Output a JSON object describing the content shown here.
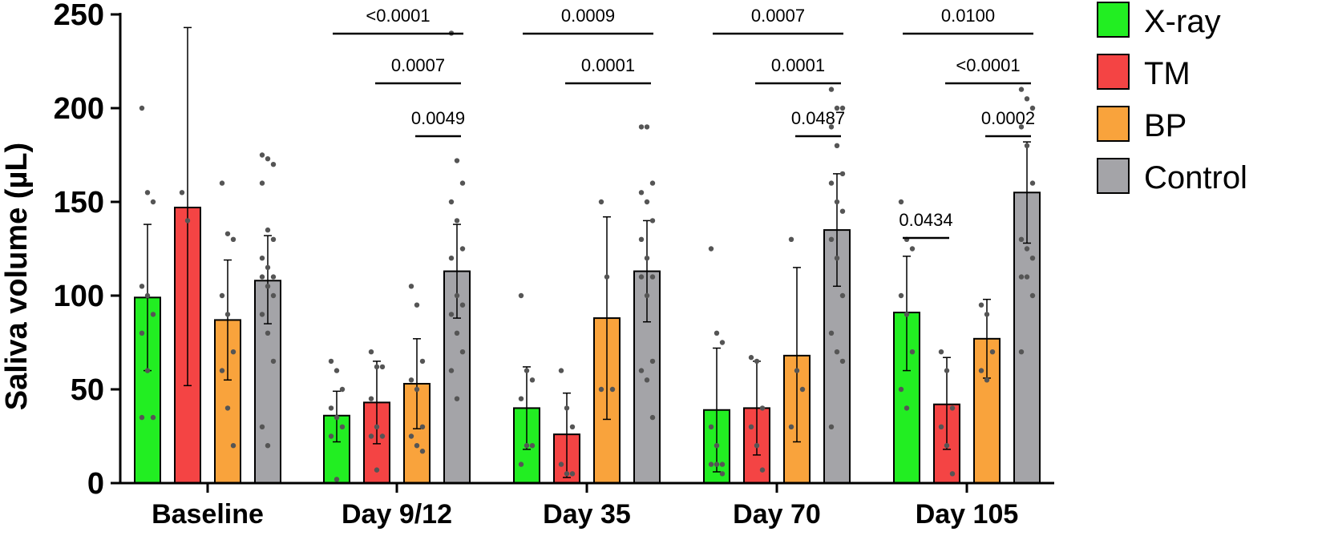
{
  "chart_data": {
    "type": "bar",
    "ylabel": "Saliva volume (µL)",
    "ylim": [
      0,
      250
    ],
    "yticks": [
      "0",
      "50",
      "100",
      "150",
      "200",
      "250"
    ],
    "categories": [
      "Baseline",
      "Day 9/12",
      "Day 35",
      "Day 70",
      "Day 105"
    ],
    "colors": {
      "X-ray": "#22ee22",
      "TM": "#f44444",
      "BP": "#f9a33c",
      "Control": "#a4a4a8"
    },
    "series": [
      {
        "name": "X-ray",
        "values": [
          99,
          36,
          40,
          39,
          91
        ],
        "err_low": [
          60,
          22,
          18,
          6,
          60
        ],
        "err_high": [
          138,
          49,
          62,
          72,
          121
        ],
        "points": [
          [
            200,
            155,
            150,
            105,
            100,
            90,
            80,
            60,
            35,
            35
          ],
          [
            65,
            60,
            50,
            40,
            35,
            30,
            25,
            2
          ],
          [
            100,
            60,
            55,
            45,
            20,
            20,
            10
          ],
          [
            125,
            80,
            75,
            30,
            20,
            10,
            10,
            10,
            5
          ],
          [
            150,
            130,
            125,
            100,
            90,
            70,
            50,
            40
          ]
        ]
      },
      {
        "name": "TM",
        "values": [
          147,
          43,
          26,
          40,
          42
        ],
        "err_low": [
          52,
          21,
          3,
          15,
          18
        ],
        "err_high": [
          243,
          65,
          48,
          65,
          67
        ],
        "points": [
          [
            155,
            140
          ],
          [
            70,
            62,
            62,
            45,
            30,
            25,
            25,
            7
          ],
          [
            60,
            40,
            30,
            10,
            5,
            5
          ],
          [
            67,
            65,
            40,
            30,
            20,
            7
          ],
          [
            70,
            60,
            40,
            30,
            20,
            5
          ]
        ]
      },
      {
        "name": "BP",
        "values": [
          87,
          53,
          88,
          68,
          77
        ],
        "err_low": [
          55,
          29,
          34,
          22,
          56
        ],
        "err_high": [
          119,
          77,
          142,
          115,
          98
        ],
        "points": [
          [
            160,
            133,
            130,
            100,
            90,
            70,
            60,
            40,
            20
          ],
          [
            105,
            95,
            65,
            55,
            50,
            30,
            25,
            20,
            17
          ],
          [
            150,
            110,
            50,
            50
          ],
          [
            130,
            60,
            50,
            30
          ],
          [
            95,
            90,
            70,
            60,
            55
          ]
        ]
      },
      {
        "name": "Control",
        "values": [
          108,
          113,
          113,
          135,
          155
        ],
        "err_low": [
          85,
          88,
          86,
          105,
          128
        ],
        "err_high": [
          132,
          138,
          140,
          165,
          182
        ],
        "points": [
          [
            175,
            173,
            170,
            160,
            135,
            130,
            120,
            115,
            110,
            110,
            105,
            100,
            90,
            80,
            65,
            30,
            20
          ],
          [
            240,
            172,
            160,
            150,
            140,
            125,
            120,
            100,
            95,
            90,
            80,
            70,
            60,
            45
          ],
          [
            190,
            190,
            160,
            155,
            150,
            140,
            130,
            120,
            110,
            110,
            100,
            65,
            60,
            55,
            35
          ],
          [
            210,
            200,
            200,
            190,
            180,
            165,
            160,
            150,
            145,
            130,
            120,
            100,
            80,
            70,
            65,
            30
          ],
          [
            210,
            205,
            200,
            190,
            180,
            160,
            130,
            125,
            120,
            110,
            110,
            100,
            70
          ]
        ]
      }
    ],
    "comparisons": [
      {
        "group": 1,
        "from": "X-ray",
        "to": "Control",
        "label": "<0.0001"
      },
      {
        "group": 1,
        "from": "TM",
        "to": "Control",
        "label": "0.0007"
      },
      {
        "group": 1,
        "from": "BP",
        "to": "Control",
        "label": "0.0049"
      },
      {
        "group": 2,
        "from": "X-ray",
        "to": "Control",
        "label": "0.0009"
      },
      {
        "group": 2,
        "from": "TM",
        "to": "Control",
        "label": "0.0001"
      },
      {
        "group": 3,
        "from": "X-ray",
        "to": "Control",
        "label": "0.0007"
      },
      {
        "group": 3,
        "from": "TM",
        "to": "Control",
        "label": "0.0001"
      },
      {
        "group": 3,
        "from": "BP",
        "to": "Control",
        "label": "0.0487"
      },
      {
        "group": 4,
        "from": "X-ray",
        "to": "Control",
        "label": "0.0100"
      },
      {
        "group": 4,
        "from": "TM",
        "to": "Control",
        "label": "<0.0001"
      },
      {
        "group": 4,
        "from": "BP",
        "to": "Control",
        "label": "0.0002"
      },
      {
        "group": 4,
        "from": "X-ray",
        "to": "TM",
        "label": "0.0434"
      }
    ],
    "legend": [
      "X-ray",
      "TM",
      "BP",
      "Control"
    ],
    "legend_position": "top-right"
  }
}
